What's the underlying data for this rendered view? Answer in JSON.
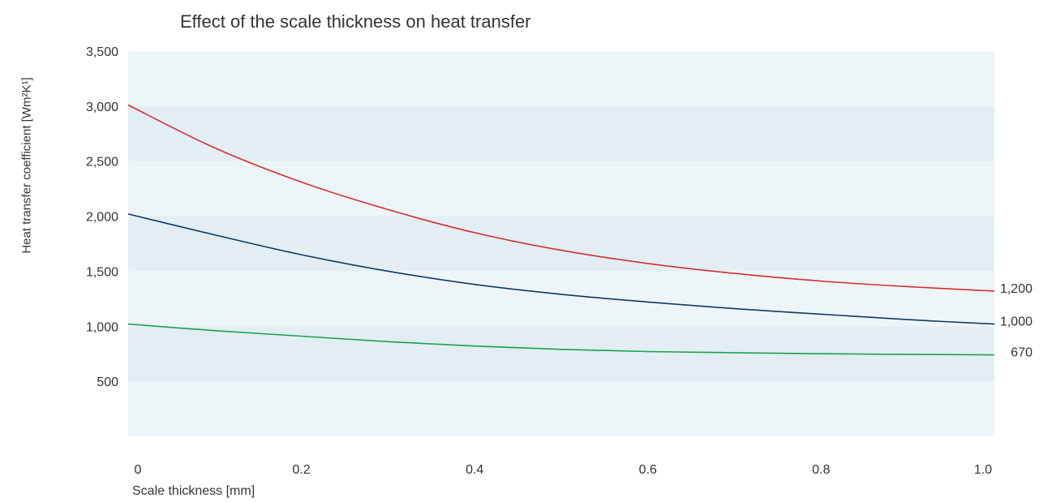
{
  "chart_data": {
    "type": "line",
    "title": "Effect of the scale thickness on heat transfer",
    "xlabel": "Scale thickness [mm]",
    "ylabel": "Heat transfer coefficient [Wm²K¹]",
    "xlim": [
      0,
      1.0
    ],
    "ylim": [
      0,
      3500
    ],
    "x_ticks": [
      "0",
      "0.2",
      "0.4",
      "0.6",
      "0.8",
      "1.0"
    ],
    "x_tick_values": [
      0,
      0.2,
      0.4,
      0.6,
      0.8,
      1.0
    ],
    "y_ticks": [
      "500",
      "1,000",
      "1,500",
      "2,000",
      "2,500",
      "3,000",
      "3,500"
    ],
    "y_tick_values": [
      500,
      1000,
      1500,
      2000,
      2500,
      3000,
      3500
    ],
    "band_colors": [
      "#eef5f8",
      "#e2eef3"
    ],
    "grid": false,
    "series": [
      {
        "color": "#d32f2f",
        "end_label": "1,200",
        "x": [
          0,
          0.1,
          0.2,
          0.3,
          0.4,
          0.5,
          0.6,
          0.7,
          0.8,
          0.9,
          1.0
        ],
        "values": [
          3010,
          2620,
          2310,
          2060,
          1850,
          1690,
          1570,
          1480,
          1410,
          1360,
          1320
        ]
      },
      {
        "color": "#0d3b66",
        "end_label": "1,000",
        "x": [
          0,
          0.1,
          0.2,
          0.3,
          0.4,
          0.5,
          0.6,
          0.7,
          0.8,
          0.9,
          1.0
        ],
        "values": [
          2020,
          1830,
          1650,
          1500,
          1380,
          1290,
          1220,
          1160,
          1110,
          1060,
          1020
        ]
      },
      {
        "color": "#1aa34a",
        "end_label": "670",
        "x": [
          0,
          0.1,
          0.2,
          0.3,
          0.4,
          0.5,
          0.6,
          0.7,
          0.8,
          0.9,
          1.0
        ],
        "values": [
          1020,
          960,
          910,
          860,
          820,
          790,
          770,
          760,
          750,
          745,
          740
        ]
      }
    ]
  }
}
